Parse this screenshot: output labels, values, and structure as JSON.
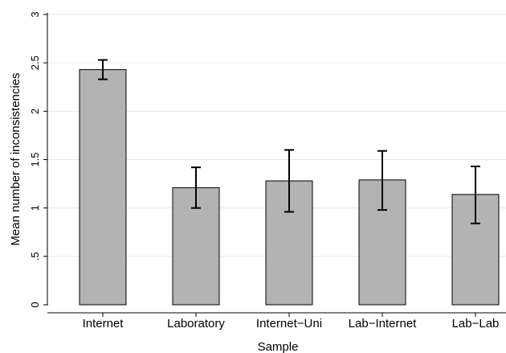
{
  "chart_data": {
    "type": "bar",
    "categories": [
      "Internet",
      "Laboratory",
      "Internet−Uni",
      "Lab−Internet",
      "Lab−Lab"
    ],
    "values": [
      2.43,
      1.21,
      1.28,
      1.29,
      1.14
    ],
    "error_bars": [
      {
        "low": 2.33,
        "high": 2.53
      },
      {
        "low": 1.0,
        "high": 1.42
      },
      {
        "low": 0.96,
        "high": 1.6
      },
      {
        "low": 0.98,
        "high": 1.59
      },
      {
        "low": 0.84,
        "high": 1.43
      }
    ],
    "yticks": [
      0,
      0.5,
      1,
      1.5,
      2,
      2.5,
      3
    ],
    "ytick_labels": [
      "0",
      ".5",
      "1",
      "1.5",
      "2",
      "2.5",
      "3"
    ],
    "ylim": [
      0,
      3
    ],
    "xlabel": "Sample",
    "ylabel": "Mean number of inconsistencies",
    "grid": true,
    "colors": {
      "bar_fill": "#b3b3b3",
      "bar_stroke": "#000000",
      "grid": "#e6e6e6",
      "axis": "#000000"
    }
  }
}
